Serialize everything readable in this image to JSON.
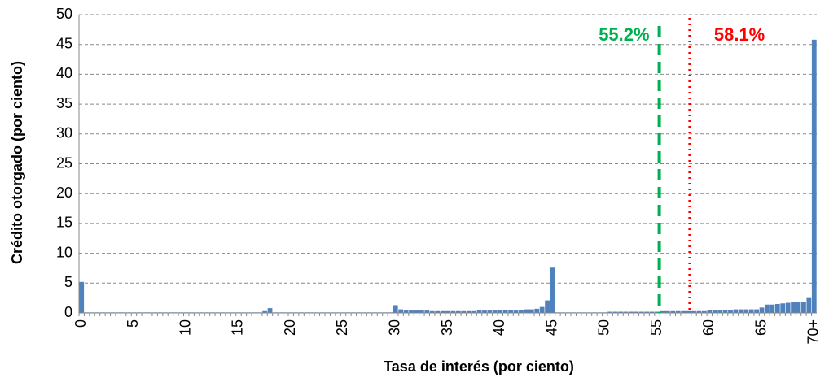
{
  "chart_data": {
    "type": "bar",
    "x_label": "Tasa de interés (por ciento)",
    "y_label": "Crédito otorgado (por ciento)",
    "color": "#4f81bd",
    "grid": true,
    "ylim": [
      0,
      50
    ],
    "yticks": [
      0,
      5,
      10,
      15,
      20,
      25,
      30,
      35,
      40,
      45,
      50
    ],
    "categories": [
      "0",
      null,
      null,
      null,
      null,
      null,
      null,
      null,
      null,
      null,
      "5",
      null,
      null,
      null,
      null,
      null,
      null,
      null,
      null,
      null,
      "10",
      null,
      null,
      null,
      null,
      null,
      null,
      null,
      null,
      null,
      "15",
      null,
      null,
      null,
      null,
      null,
      null,
      null,
      null,
      null,
      "20",
      null,
      null,
      null,
      null,
      null,
      null,
      null,
      null,
      null,
      "25",
      null,
      null,
      null,
      null,
      null,
      null,
      null,
      null,
      null,
      "30",
      null,
      null,
      null,
      null,
      null,
      null,
      null,
      null,
      null,
      "35",
      null,
      null,
      null,
      null,
      null,
      null,
      null,
      null,
      null,
      "40",
      null,
      null,
      null,
      null,
      null,
      null,
      null,
      null,
      null,
      "45",
      null,
      null,
      null,
      null,
      null,
      null,
      null,
      null,
      null,
      "50",
      null,
      null,
      null,
      null,
      null,
      null,
      null,
      null,
      null,
      "55",
      null,
      null,
      null,
      null,
      null,
      null,
      null,
      null,
      null,
      "60",
      null,
      null,
      null,
      null,
      null,
      null,
      null,
      null,
      null,
      "65",
      null,
      null,
      null,
      null,
      null,
      null,
      null,
      null,
      null,
      "70+"
    ],
    "values": [
      5.2,
      0.1,
      0.1,
      0.1,
      0.1,
      0.1,
      0.1,
      0.1,
      0.1,
      0.1,
      0.1,
      0.1,
      0.1,
      0.1,
      0.1,
      0.1,
      0.1,
      0.1,
      0.1,
      0.1,
      0.1,
      0.1,
      0.1,
      0.1,
      0.1,
      0.1,
      0.1,
      0.1,
      0.1,
      0.1,
      0.1,
      0.1,
      0.1,
      0.1,
      0.1,
      0.3,
      0.8,
      0.1,
      0.1,
      0.1,
      0.1,
      0.1,
      0.1,
      0.1,
      0.1,
      0.1,
      0.1,
      0.1,
      0.1,
      0.1,
      0.1,
      0.1,
      0.1,
      0.1,
      0.1,
      0.1,
      0.1,
      0.1,
      0.1,
      0.1,
      1.3,
      0.6,
      0.4,
      0.4,
      0.4,
      0.4,
      0.4,
      0.3,
      0.3,
      0.3,
      0.3,
      0.3,
      0.3,
      0.3,
      0.3,
      0.3,
      0.4,
      0.4,
      0.4,
      0.4,
      0.4,
      0.5,
      0.5,
      0.4,
      0.5,
      0.6,
      0.6,
      0.7,
      1.0,
      2.1,
      7.6,
      0.1,
      0.1,
      0.1,
      0.1,
      0.1,
      0.1,
      0.1,
      0.1,
      0.1,
      0.1,
      0.2,
      0.2,
      0.2,
      0.2,
      0.2,
      0.2,
      0.2,
      0.2,
      0.2,
      0.2,
      0.3,
      0.3,
      0.3,
      0.3,
      0.3,
      0.3,
      0.3,
      0.3,
      0.3,
      0.4,
      0.4,
      0.4,
      0.5,
      0.5,
      0.6,
      0.6,
      0.6,
      0.6,
      0.6,
      0.9,
      1.4,
      1.4,
      1.5,
      1.6,
      1.7,
      1.8,
      1.8,
      1.9,
      2.5,
      45.8
    ],
    "annotations": [
      {
        "text": "55.2%",
        "x": 55.2,
        "color": "#00b050",
        "style": "dashed"
      },
      {
        "text": "58.1%",
        "x": 58.1,
        "color": "#ff0000",
        "style": "dotted"
      }
    ]
  }
}
